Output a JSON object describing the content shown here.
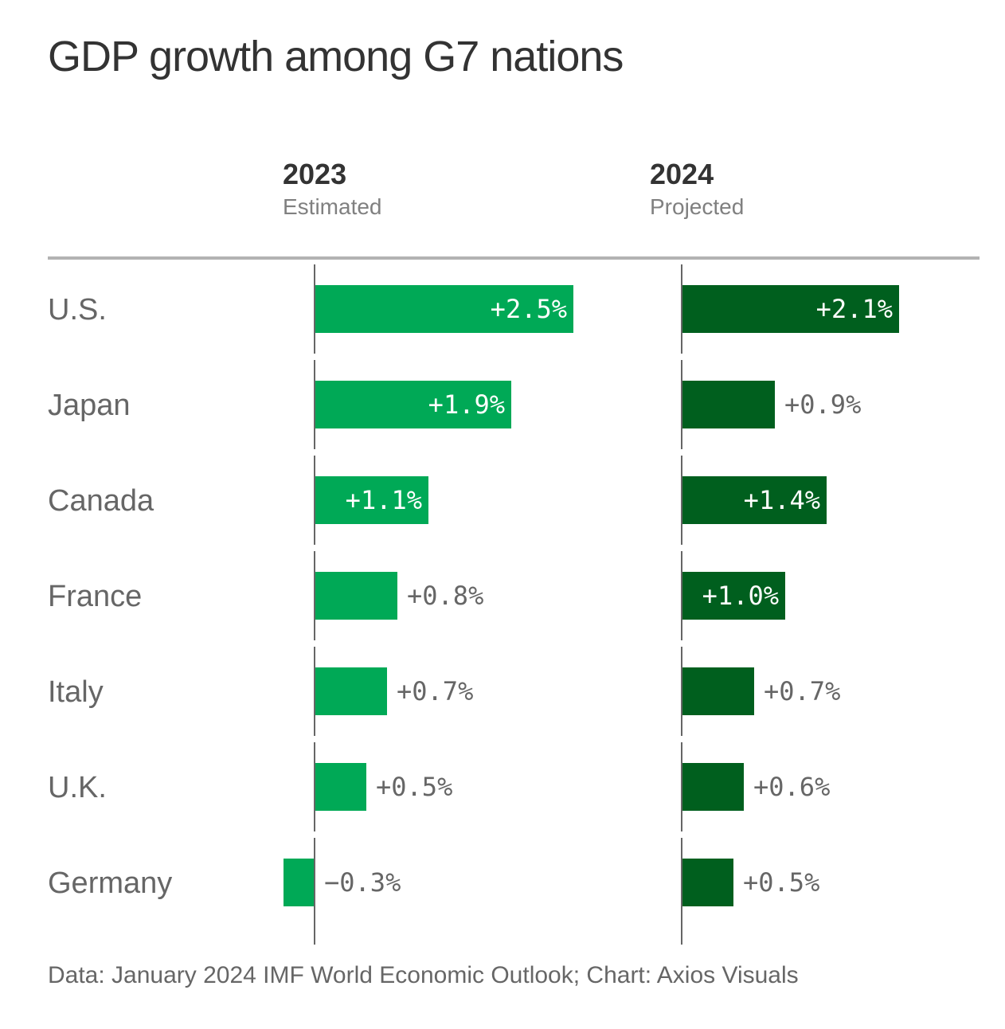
{
  "chart_data": {
    "type": "bar",
    "title": "GDP growth among G7 nations",
    "categories": [
      "U.S.",
      "Japan",
      "Canada",
      "France",
      "Italy",
      "U.K.",
      "Germany"
    ],
    "series": [
      {
        "name": "2023",
        "subtitle": "Estimated",
        "color": "#00a956",
        "values": [
          2.5,
          1.9,
          1.1,
          0.8,
          0.7,
          0.5,
          -0.3
        ],
        "labels": [
          "+2.5%",
          "+1.9%",
          "+1.1%",
          "+0.8%",
          "+0.7%",
          "+0.5%",
          "−0.3%"
        ]
      },
      {
        "name": "2024",
        "subtitle": "Projected",
        "color": "#005f1e",
        "values": [
          2.1,
          0.9,
          1.4,
          1.0,
          0.7,
          0.6,
          0.5
        ],
        "labels": [
          "+2.1%",
          "+0.9%",
          "+1.4%",
          "+1.0%",
          "+0.7%",
          "+0.6%",
          "+0.5%"
        ]
      }
    ],
    "xlabel": "",
    "ylabel": "",
    "grid": false,
    "legend": "none",
    "source": "Data: January 2024 IMF World Economic Outlook; Chart: Axios Visuals"
  }
}
